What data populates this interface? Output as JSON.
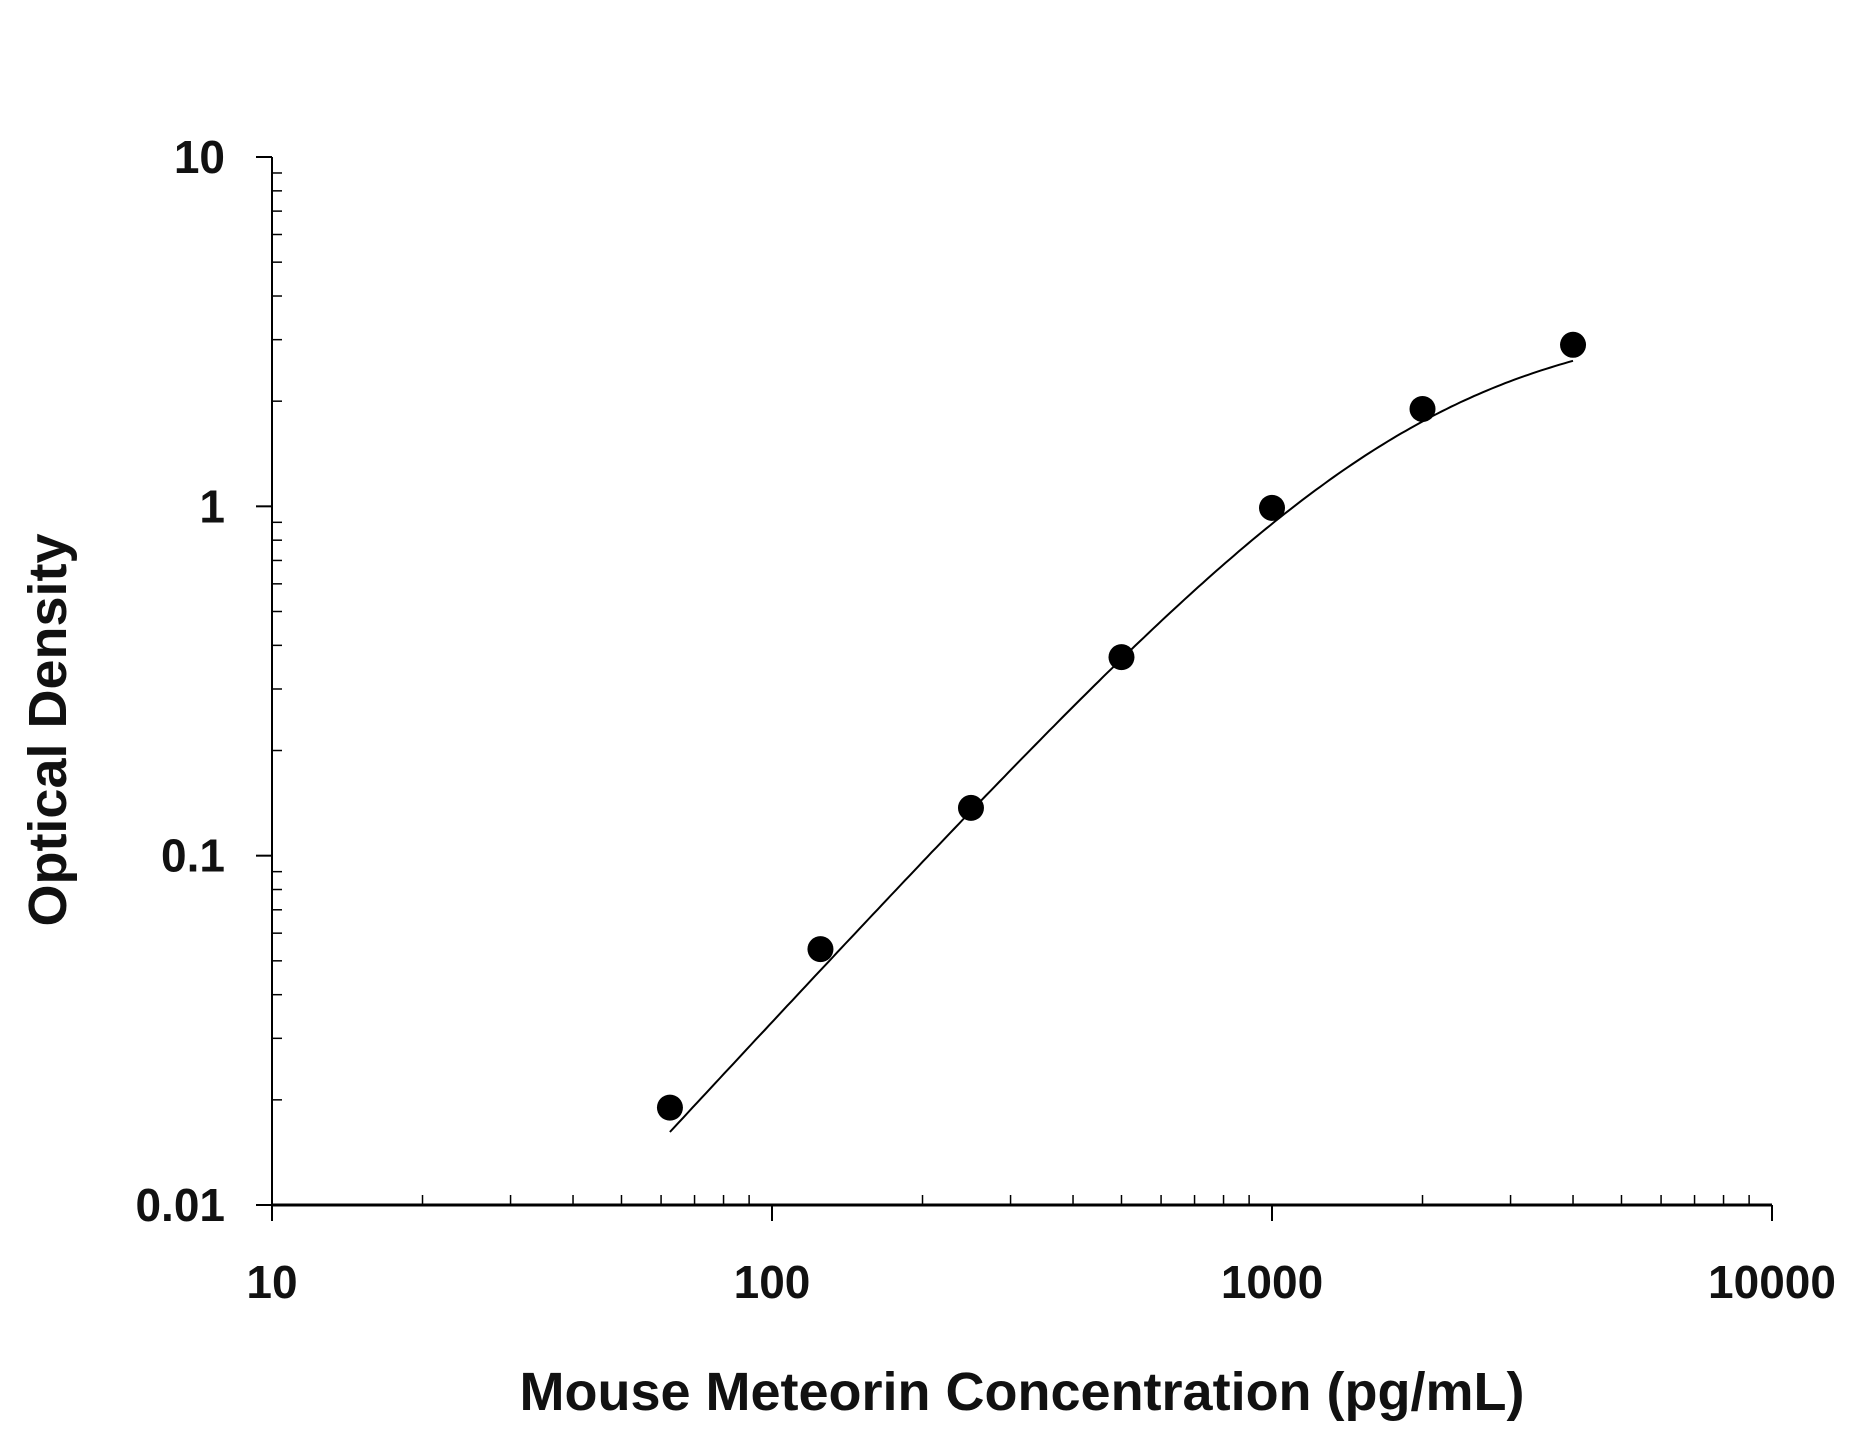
{
  "chart_data": {
    "type": "scatter",
    "xlabel": "Mouse Meteorin Concentration (pg/mL)",
    "ylabel": "Optical Density",
    "x_scale": "log",
    "y_scale": "log",
    "xlim": [
      10,
      10000
    ],
    "ylim": [
      0.01,
      10
    ],
    "x_ticks": [
      "10",
      "100",
      "1000",
      "10000"
    ],
    "y_ticks": [
      "0.01",
      "0.1",
      "1",
      "10"
    ],
    "grid": false,
    "legend": "none",
    "fit_curve": true,
    "marker_color": "#000000",
    "x": [
      62.5,
      125,
      250,
      500,
      1000,
      2000,
      4000
    ],
    "y": [
      0.019,
      0.054,
      0.137,
      0.37,
      0.99,
      1.9,
      2.9
    ]
  }
}
